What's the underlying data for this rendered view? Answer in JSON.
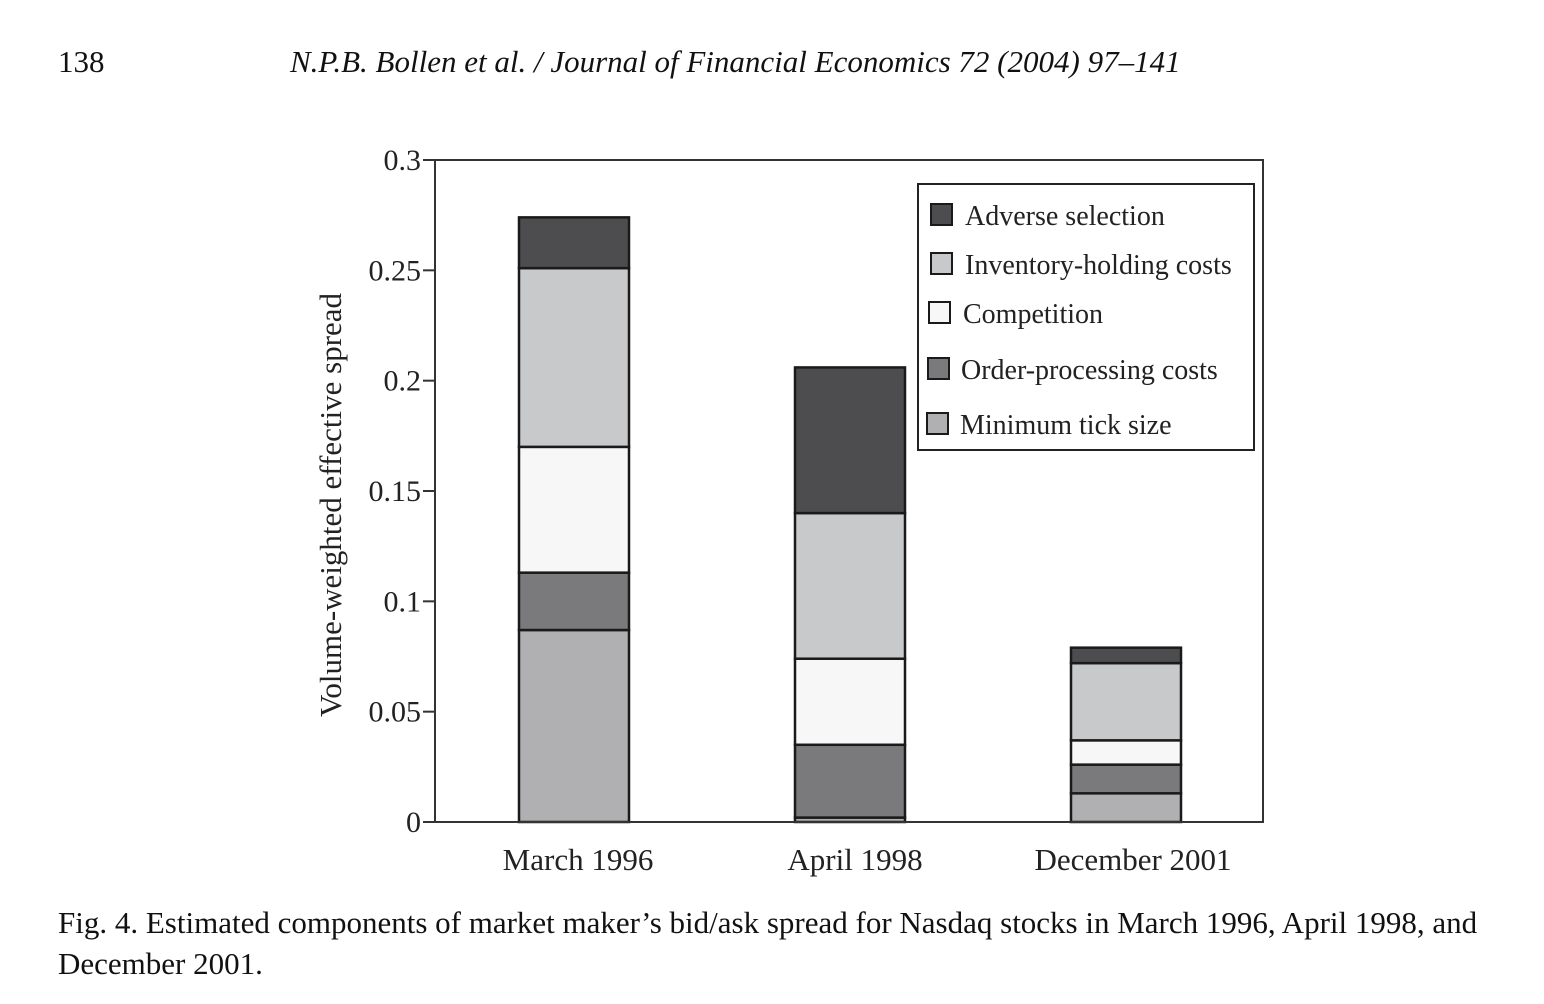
{
  "header": {
    "page_number": "138",
    "running_head": "N.P.B. Bollen et al. / Journal of Financial Economics 72 (2004) 97–141"
  },
  "caption": "Fig. 4.  Estimated components of market maker’s bid/ask spread for Nasdaq stocks in March 1996, April 1998, and December 2001.",
  "chart_data": {
    "type": "bar",
    "stacked": true,
    "title": "",
    "xlabel": "",
    "ylabel": "Volume-weighted effective spread",
    "ylim": [
      0,
      0.3
    ],
    "yticks": [
      0,
      0.05,
      0.1,
      0.15,
      0.2,
      0.25,
      0.3
    ],
    "ytick_labels": [
      "0",
      "0.05",
      "0.1",
      "0.15",
      "0.2",
      "0.25",
      "0.3"
    ],
    "categories": [
      "March 1996",
      "April 1998",
      "December 2001"
    ],
    "legend_position": "top-right",
    "series": [
      {
        "name": "Minimum tick size",
        "color": "#b0b0b2",
        "values": [
          0.087,
          0.002,
          0.013
        ]
      },
      {
        "name": "Order-processing costs",
        "color": "#7a7a7c",
        "values": [
          0.026,
          0.033,
          0.013
        ]
      },
      {
        "name": "Competition",
        "color": "#f7f7f7",
        "values": [
          0.057,
          0.039,
          0.011
        ]
      },
      {
        "name": "Inventory-holding costs",
        "color": "#c8c9cb",
        "values": [
          0.081,
          0.066,
          0.035
        ]
      },
      {
        "name": "Adverse selection",
        "color": "#4d4d4f",
        "values": [
          0.023,
          0.066,
          0.007
        ]
      }
    ]
  }
}
